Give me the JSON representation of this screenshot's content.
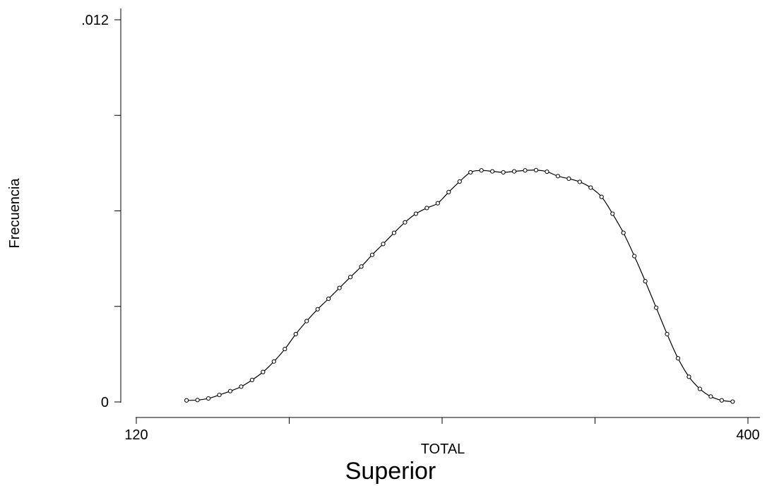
{
  "chart_data": {
    "type": "line",
    "title": "Superior",
    "xlabel": "TOTAL",
    "ylabel": "Frecuencia",
    "xlim": [
      120,
      400
    ],
    "ylim": [
      0,
      0.012
    ],
    "x_ticks": [
      120,
      190,
      260,
      330,
      400
    ],
    "x_tick_labels": [
      "120",
      "",
      "",
      "",
      "400"
    ],
    "y_ticks": [
      0,
      0.003,
      0.006,
      0.009,
      0.012
    ],
    "y_tick_labels": [
      "0",
      "",
      "",
      "",
      ".012"
    ],
    "grid": false,
    "series": [
      {
        "style": "line-with-markers",
        "x": [
          143,
          148,
          153,
          158,
          163,
          168,
          173,
          178,
          183,
          188,
          193,
          198,
          203,
          208,
          213,
          218,
          223,
          228,
          233,
          238,
          243,
          248,
          253,
          258,
          263,
          268,
          273,
          278,
          283,
          288,
          293,
          298,
          303,
          308,
          313,
          318,
          323,
          328,
          333,
          338,
          343,
          348,
          353,
          358,
          363,
          368,
          373,
          378,
          383,
          388,
          393
        ],
        "y": [
          5e-05,
          6e-05,
          0.00011,
          0.00022,
          0.00034,
          0.00048,
          0.00069,
          0.00094,
          0.00127,
          0.00166,
          0.00213,
          0.00254,
          0.00291,
          0.00324,
          0.00358,
          0.00392,
          0.00425,
          0.00462,
          0.00496,
          0.00531,
          0.00564,
          0.00591,
          0.00609,
          0.00624,
          0.00659,
          0.00692,
          0.00721,
          0.00727,
          0.00724,
          0.00721,
          0.00724,
          0.00727,
          0.00728,
          0.00723,
          0.00709,
          0.00701,
          0.00691,
          0.00673,
          0.00644,
          0.00591,
          0.00531,
          0.00458,
          0.00379,
          0.00296,
          0.00213,
          0.00137,
          0.00079,
          0.00041,
          0.00017,
          5e-05,
          1e-05
        ]
      }
    ]
  }
}
